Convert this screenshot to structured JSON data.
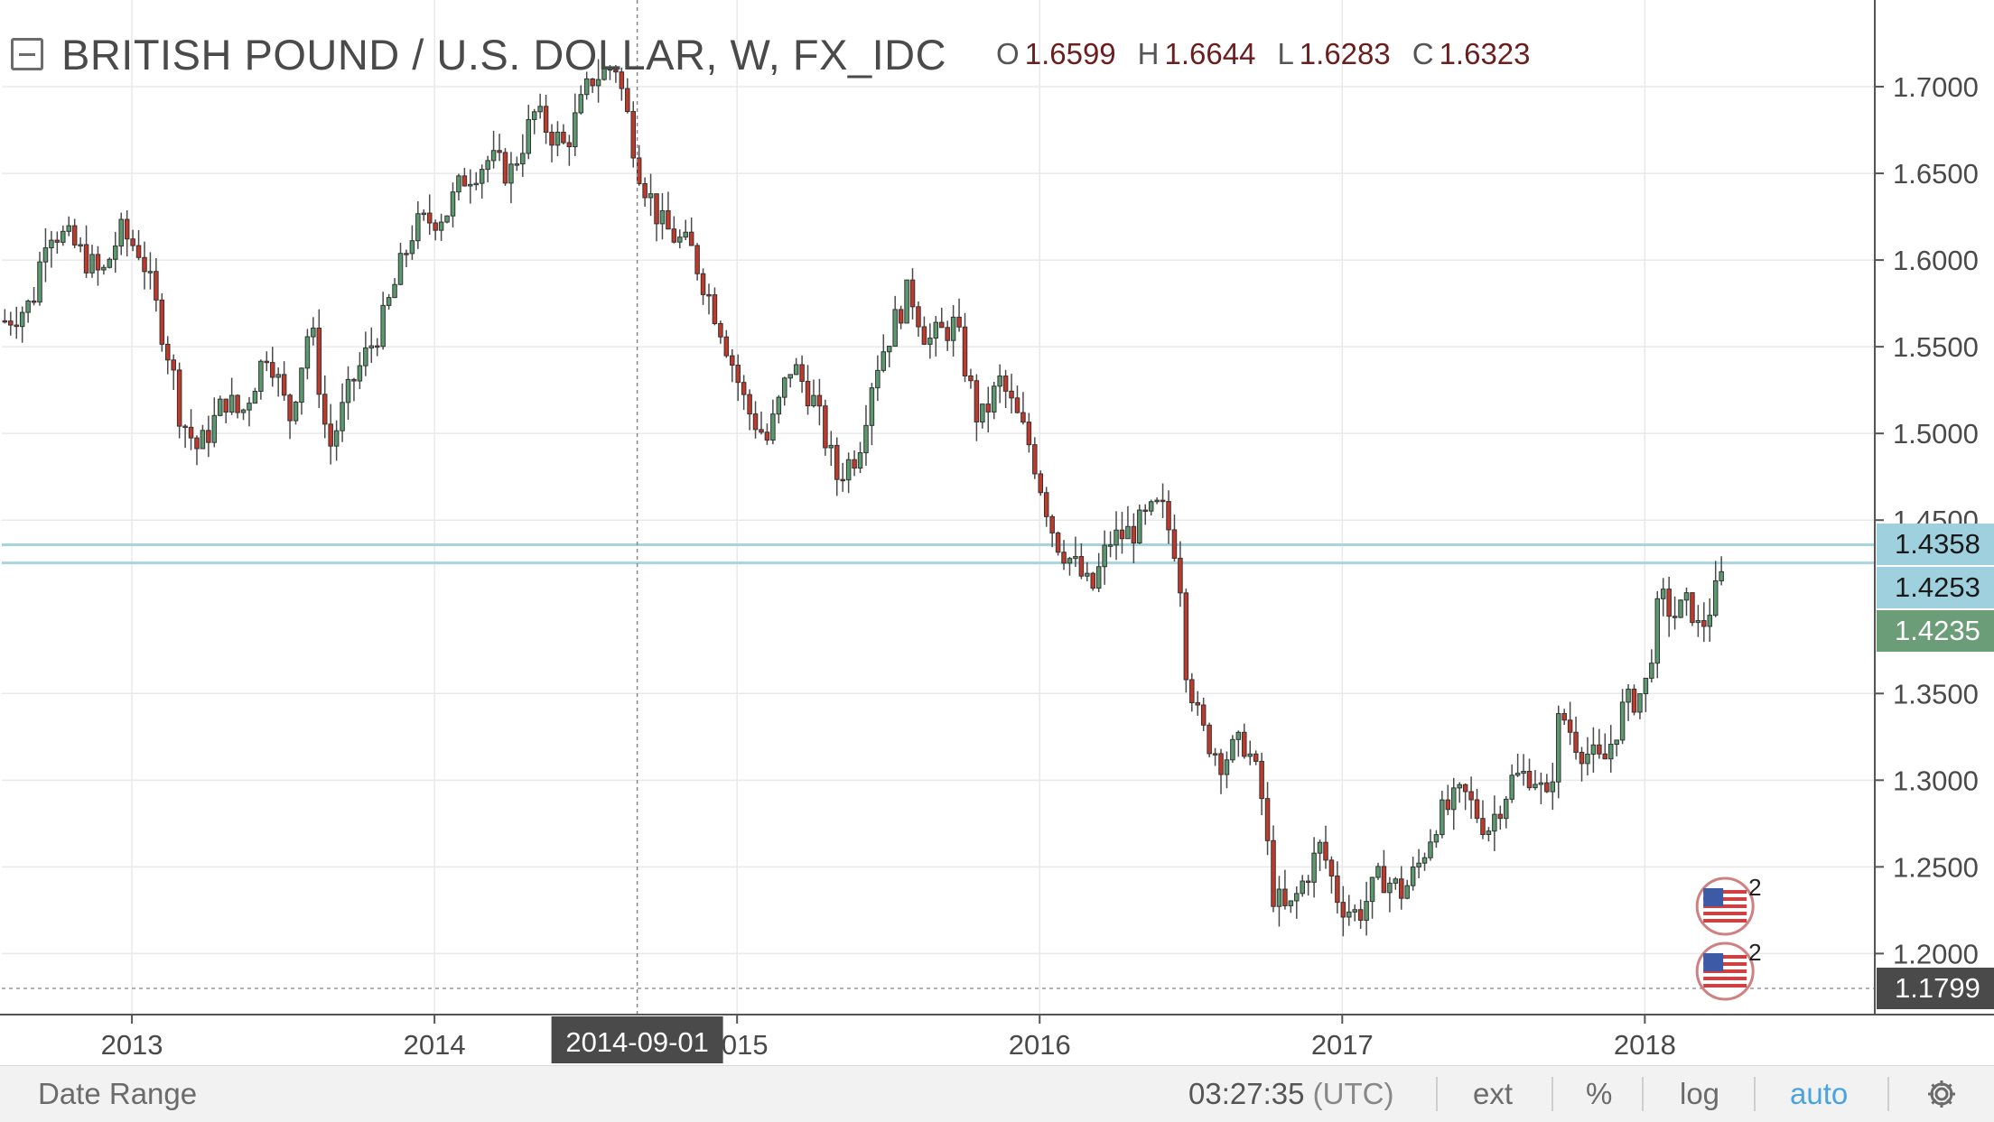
{
  "legend": {
    "symbol": "BRITISH POUND / U.S. DOLLAR, W, FX_IDC",
    "ohlc": [
      {
        "key": "O",
        "value": "1.6599"
      },
      {
        "key": "H",
        "value": "1.6644"
      },
      {
        "key": "L",
        "value": "1.6283"
      },
      {
        "key": "C",
        "value": "1.6323"
      }
    ]
  },
  "price_labels": [
    {
      "text": "1.4358",
      "price": 1.4358,
      "style": "alert"
    },
    {
      "text": "1.4253",
      "price": 1.4253,
      "style": "alert"
    },
    {
      "text": "1.4235",
      "price": 1.4235,
      "style": "last"
    },
    {
      "text": "1.1799",
      "price": 1.1799,
      "style": "min"
    }
  ],
  "crosshair": {
    "date_label": "2014-09-01",
    "date": 2014.67
  },
  "events": [
    {
      "count": "2",
      "icon": "us-flag-icon",
      "date": 2018.28
    },
    {
      "count": "2",
      "icon": "us-flag-icon",
      "date": 2018.28
    }
  ],
  "chart_data": {
    "type": "candlestick",
    "interval": "W",
    "y_ticks": [
      {
        "value": 1.7,
        "label": "1.7000"
      },
      {
        "value": 1.65,
        "label": "1.6500"
      },
      {
        "value": 1.6,
        "label": "1.6000"
      },
      {
        "value": 1.55,
        "label": "1.5500"
      },
      {
        "value": 1.5,
        "label": "1.5000"
      },
      {
        "value": 1.45,
        "label": "1.4500"
      },
      {
        "value": 1.35,
        "label": "1.3500"
      },
      {
        "value": 1.3,
        "label": "1.3000"
      },
      {
        "value": 1.25,
        "label": "1.2500"
      },
      {
        "value": 1.2,
        "label": "1.2000"
      }
    ],
    "x_ticks": [
      {
        "value": 2013,
        "label": "2013"
      },
      {
        "value": 2014,
        "label": "2014"
      },
      {
        "value": 2015,
        "label": "2015"
      },
      {
        "value": 2016,
        "label": "2016"
      },
      {
        "value": 2017,
        "label": "2017"
      },
      {
        "value": 2018,
        "label": "2018"
      }
    ],
    "x_range": [
      2012.57,
      2018.76
    ],
    "y_range": [
      1.1648,
      1.75
    ],
    "anchors": [
      [
        2012.58,
        1.565
      ],
      [
        2012.67,
        1.575
      ],
      [
        2012.72,
        1.62
      ],
      [
        2012.8,
        1.61
      ],
      [
        2012.9,
        1.59
      ],
      [
        2012.96,
        1.616
      ],
      [
        2013.03,
        1.605
      ],
      [
        2013.13,
        1.54
      ],
      [
        2013.16,
        1.51
      ],
      [
        2013.22,
        1.49
      ],
      [
        2013.31,
        1.52
      ],
      [
        2013.36,
        1.51
      ],
      [
        2013.45,
        1.55
      ],
      [
        2013.52,
        1.508
      ],
      [
        2013.59,
        1.565
      ],
      [
        2013.65,
        1.49
      ],
      [
        2013.73,
        1.53
      ],
      [
        2013.83,
        1.565
      ],
      [
        2013.93,
        1.618
      ],
      [
        2014.04,
        1.628
      ],
      [
        2014.1,
        1.648
      ],
      [
        2014.18,
        1.658
      ],
      [
        2014.25,
        1.65
      ],
      [
        2014.33,
        1.684
      ],
      [
        2014.43,
        1.665
      ],
      [
        2014.52,
        1.705
      ],
      [
        2014.6,
        1.712
      ],
      [
        2014.68,
        1.65
      ],
      [
        2014.75,
        1.62
      ],
      [
        2014.85,
        1.605
      ],
      [
        2014.95,
        1.56
      ],
      [
        2015.03,
        1.515
      ],
      [
        2015.1,
        1.496
      ],
      [
        2015.18,
        1.54
      ],
      [
        2015.25,
        1.52
      ],
      [
        2015.33,
        1.475
      ],
      [
        2015.4,
        1.49
      ],
      [
        2015.45,
        1.535
      ],
      [
        2015.53,
        1.568
      ],
      [
        2015.57,
        1.583
      ],
      [
        2015.63,
        1.553
      ],
      [
        2015.72,
        1.563
      ],
      [
        2015.8,
        1.505
      ],
      [
        2015.87,
        1.53
      ],
      [
        2015.97,
        1.492
      ],
      [
        2016.05,
        1.44
      ],
      [
        2016.13,
        1.42
      ],
      [
        2016.17,
        1.408
      ],
      [
        2016.23,
        1.438
      ],
      [
        2016.31,
        1.444
      ],
      [
        2016.4,
        1.458
      ],
      [
        2016.46,
        1.428
      ],
      [
        2016.48,
        1.37
      ],
      [
        2016.53,
        1.33
      ],
      [
        2016.6,
        1.312
      ],
      [
        2016.68,
        1.322
      ],
      [
        2016.73,
        1.295
      ],
      [
        2016.77,
        1.235
      ],
      [
        2016.82,
        1.222
      ],
      [
        2016.88,
        1.245
      ],
      [
        2016.93,
        1.262
      ],
      [
        2016.99,
        1.23
      ],
      [
        2017.05,
        1.222
      ],
      [
        2017.13,
        1.245
      ],
      [
        2017.2,
        1.235
      ],
      [
        2017.25,
        1.25
      ],
      [
        2017.31,
        1.277
      ],
      [
        2017.4,
        1.292
      ],
      [
        2017.48,
        1.272
      ],
      [
        2017.56,
        1.3
      ],
      [
        2017.63,
        1.305
      ],
      [
        2017.68,
        1.285
      ],
      [
        2017.72,
        1.34
      ],
      [
        2017.78,
        1.32
      ],
      [
        2017.86,
        1.308
      ],
      [
        2017.93,
        1.342
      ],
      [
        2018.0,
        1.352
      ],
      [
        2018.05,
        1.405
      ],
      [
        2018.1,
        1.395
      ],
      [
        2018.15,
        1.402
      ],
      [
        2018.18,
        1.385
      ],
      [
        2018.24,
        1.41
      ],
      [
        2018.27,
        1.4235
      ]
    ]
  },
  "bottom_bar": {
    "date_range": "Date Range",
    "clock": "03:27:35",
    "timezone": "(UTC)",
    "ext": "ext",
    "percent": "%",
    "log": "log",
    "auto": "auto"
  },
  "colors": {
    "up": "#5b9a6f",
    "down": "#c0392b",
    "wick": "#4a4a4a",
    "grid": "#e9e9e9",
    "alert_line": "#a8d4de",
    "alert_label": "#9fd0de",
    "last_label": "#6a9d78",
    "min_label": "#4a4a4a",
    "auto_active": "#4aa3df"
  }
}
